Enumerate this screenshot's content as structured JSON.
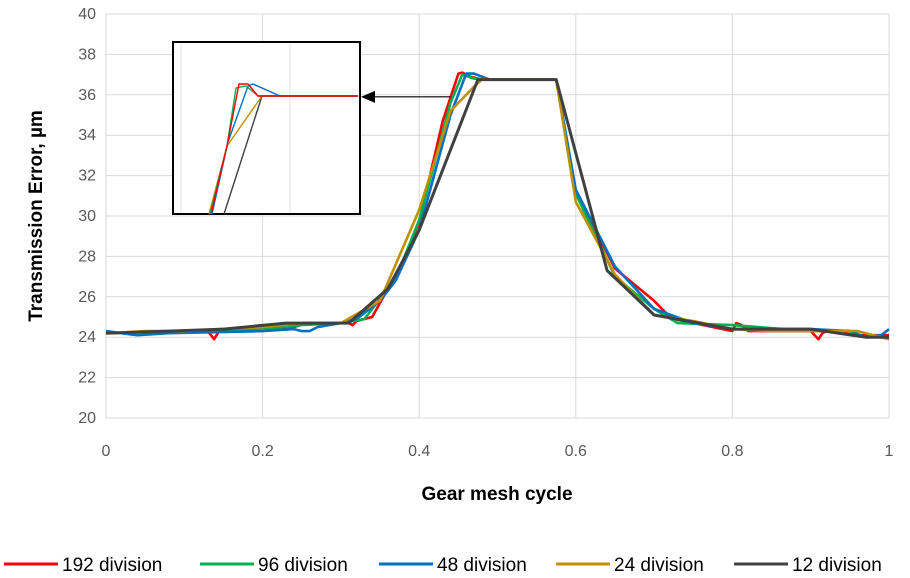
{
  "chart_data": {
    "type": "line",
    "xlabel": "Gear mesh cycle",
    "ylabel": "Transmission Error, µm",
    "xlim": [
      0,
      1
    ],
    "ylim": [
      20,
      40
    ],
    "xticks": [
      0,
      0.2,
      0.4,
      0.6,
      0.8,
      1
    ],
    "xtick_labels": [
      "0",
      "0.2",
      "0.4",
      "0.6",
      "0.8",
      "1"
    ],
    "yticks": [
      20,
      22,
      24,
      26,
      28,
      30,
      32,
      34,
      36,
      38,
      40
    ],
    "ytick_labels": [
      "20",
      "22",
      "24",
      "26",
      "28",
      "30",
      "32",
      "34",
      "36",
      "38",
      "40"
    ],
    "grid": true,
    "legend_position": "bottom",
    "series": [
      {
        "name": "192 division",
        "color": "#ff0000",
        "x": [
          0,
          0.1,
          0.13,
          0.138,
          0.146,
          0.2,
          0.24,
          0.255,
          0.3,
          0.31,
          0.315,
          0.32,
          0.34,
          0.35,
          0.36,
          0.37,
          0.4,
          0.43,
          0.45,
          0.455,
          0.465,
          0.48,
          0.575,
          0.6,
          0.65,
          0.7,
          0.72,
          0.725,
          0.8,
          0.805,
          0.812,
          0.82,
          0.9,
          0.91,
          0.915,
          0.92,
          0.96,
          1
        ],
        "y": [
          24.2,
          24.3,
          24.3,
          23.9,
          24.4,
          24.4,
          24.5,
          24.7,
          24.7,
          24.7,
          24.6,
          24.8,
          25.0,
          25.7,
          26.4,
          26.9,
          29.7,
          34.7,
          37.05,
          37.1,
          36.9,
          36.75,
          36.75,
          31.2,
          27.4,
          25.8,
          25.0,
          24.9,
          24.3,
          24.7,
          24.6,
          24.3,
          24.3,
          23.9,
          24.2,
          24.3,
          24.1,
          24.1
        ]
      },
      {
        "name": "96 division",
        "color": "#00b050",
        "x": [
          0,
          0.2,
          0.25,
          0.3,
          0.33,
          0.37,
          0.4,
          0.44,
          0.455,
          0.47,
          0.48,
          0.575,
          0.6,
          0.65,
          0.7,
          0.73,
          0.8,
          0.9,
          0.95,
          0.97,
          1
        ],
        "y": [
          24.2,
          24.4,
          24.6,
          24.7,
          24.9,
          26.9,
          29.8,
          35.6,
          37.0,
          36.8,
          36.75,
          36.75,
          31.1,
          27.0,
          25.4,
          24.7,
          24.6,
          24.3,
          24.3,
          24.0,
          24.0
        ]
      },
      {
        "name": "48 division",
        "color": "#0070c0",
        "x": [
          0,
          0.02,
          0.04,
          0.08,
          0.2,
          0.24,
          0.25,
          0.26,
          0.27,
          0.3,
          0.32,
          0.35,
          0.37,
          0.4,
          0.44,
          0.46,
          0.47,
          0.49,
          0.575,
          0.6,
          0.65,
          0.7,
          0.75,
          0.8,
          0.9,
          0.95,
          0.97,
          0.99,
          1
        ],
        "y": [
          24.3,
          24.2,
          24.1,
          24.2,
          24.3,
          24.4,
          24.3,
          24.3,
          24.5,
          24.7,
          24.9,
          25.8,
          26.8,
          29.3,
          35.0,
          37.05,
          37.05,
          36.75,
          36.75,
          31.3,
          27.5,
          25.4,
          24.7,
          24.4,
          24.4,
          24.3,
          24.0,
          24.1,
          24.4
        ]
      },
      {
        "name": "24 division",
        "color": "#bf9000",
        "x": [
          0,
          0.05,
          0.1,
          0.15,
          0.2,
          0.25,
          0.3,
          0.35,
          0.4,
          0.44,
          0.47,
          0.48,
          0.575,
          0.6,
          0.65,
          0.7,
          0.75,
          0.8,
          0.85,
          0.9,
          0.96,
          1
        ],
        "y": [
          24.2,
          24.3,
          24.3,
          24.4,
          24.5,
          24.7,
          24.7,
          25.8,
          30.3,
          35.2,
          36.4,
          36.75,
          36.75,
          30.7,
          27.1,
          25.1,
          24.8,
          24.4,
          24.3,
          24.3,
          24.3,
          23.9
        ]
      },
      {
        "name": "12 division",
        "color": "#404040",
        "x": [
          0,
          0.08,
          0.15,
          0.23,
          0.31,
          0.36,
          0.4,
          0.475,
          0.575,
          0.64,
          0.7,
          0.8,
          0.9,
          0.97,
          1
        ],
        "y": [
          24.2,
          24.3,
          24.4,
          24.7,
          24.7,
          26.4,
          29.3,
          36.75,
          36.75,
          27.3,
          25.1,
          24.4,
          24.4,
          24.0,
          24.0
        ]
      }
    ],
    "inset": {
      "description": "zoomed view of peak",
      "arrow_target": [
        0.44,
        35.9
      ]
    }
  }
}
